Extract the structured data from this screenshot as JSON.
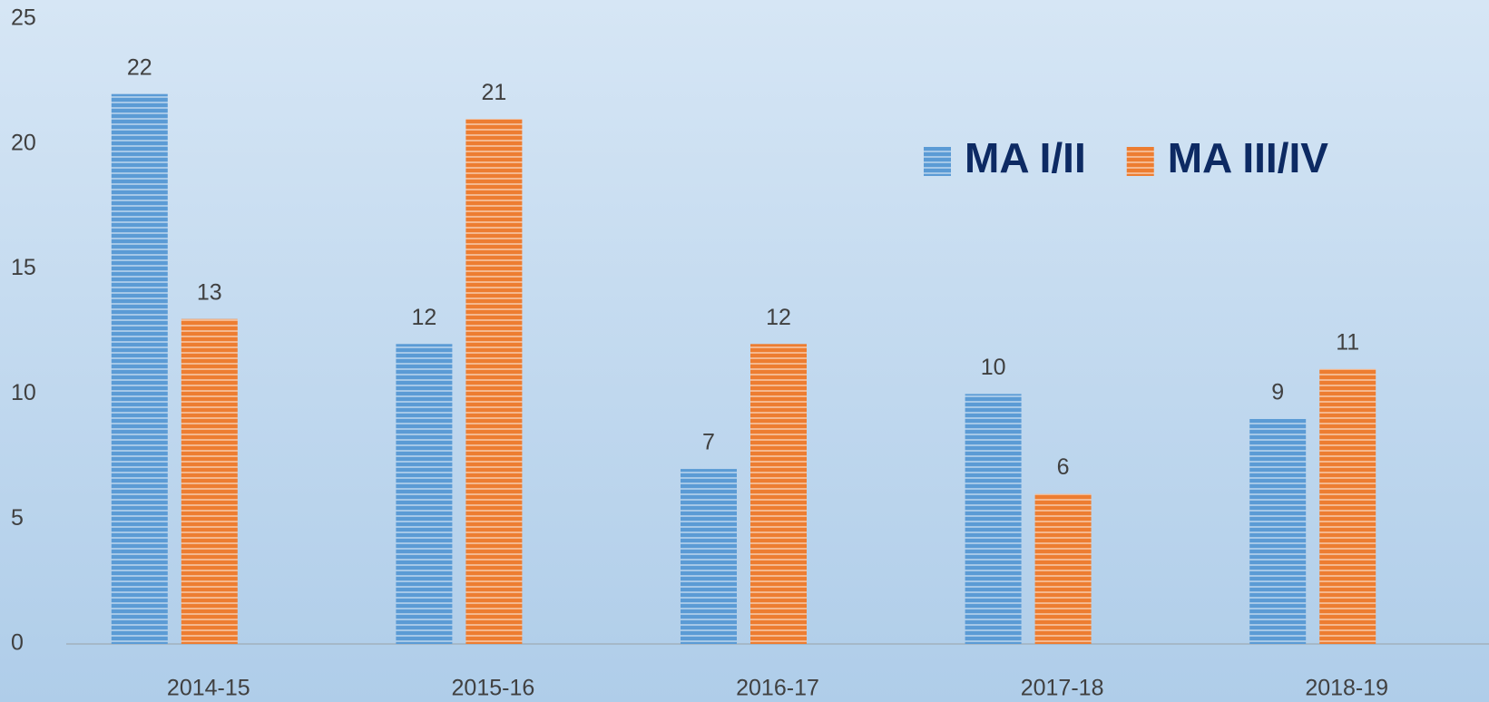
{
  "chart_data": {
    "type": "bar",
    "categories": [
      "2014-15",
      "2015-16",
      "2016-17",
      "2017-18",
      "2018-19"
    ],
    "series": [
      {
        "name": "MA I/II",
        "color": "#5b9bd5",
        "values": [
          22,
          12,
          7,
          10,
          9
        ]
      },
      {
        "name": "MA III/IV",
        "color": "#ed7d31",
        "values": [
          13,
          21,
          12,
          6,
          11
        ]
      }
    ],
    "ylim": [
      0,
      25
    ],
    "yticks": [
      0,
      5,
      10,
      15,
      20,
      25
    ],
    "grid": false,
    "legend": "top-right"
  }
}
